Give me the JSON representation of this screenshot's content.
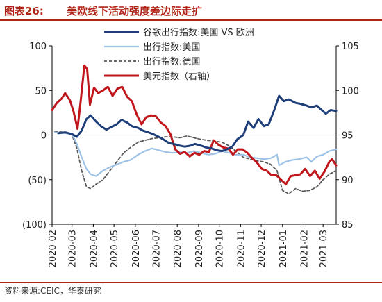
{
  "header": {
    "figure_label": "图表26:",
    "title": "美欧线下活动强度差边际走扩"
  },
  "source": "资料来源:CEIC，华泰研究",
  "colors": {
    "brand_red": "#b02418",
    "google_us": "#1f3f7a",
    "mobility_us": "#9ec3e6",
    "mobility_de": "#595959",
    "dxy": "#c0161c"
  },
  "chart_data": {
    "type": "line",
    "title": "",
    "xlabel": "",
    "ylabel": "",
    "x_range": [
      "2020-02-01",
      "2021-03-20"
    ],
    "x_ticks": [
      "2020-02",
      "2020-03",
      "2020-04",
      "2020-05",
      "2020-06",
      "2020-07",
      "2020-08",
      "2020-09",
      "2020-10",
      "2020-11",
      "2020-12",
      "2021-01",
      "2021-02",
      "2021-03"
    ],
    "left_axis": {
      "range": [
        -100,
        100
      ],
      "ticks": [
        100,
        50,
        0,
        -50,
        -100
      ],
      "tick_labels": [
        "100",
        "50",
        "0",
        "(50)",
        "(100)"
      ]
    },
    "right_axis": {
      "range": [
        85,
        105
      ],
      "ticks": [
        105,
        100,
        95,
        90,
        85
      ],
      "tick_labels": [
        "105",
        "100",
        "95",
        "90",
        "85"
      ]
    },
    "grid": false,
    "legend_position": "top-right",
    "series": [
      {
        "name": "谷歌出行指数:美国 VS 欧洲",
        "axis": "left",
        "style": "solid",
        "color": "#1f3f7a",
        "points": [
          [
            "2020-02-10",
            2
          ],
          [
            "2020-02-20",
            3
          ],
          [
            "2020-03-01",
            1
          ],
          [
            "2020-03-08",
            -2
          ],
          [
            "2020-03-15",
            5
          ],
          [
            "2020-03-22",
            18
          ],
          [
            "2020-03-28",
            22
          ],
          [
            "2020-04-05",
            15
          ],
          [
            "2020-04-12",
            10
          ],
          [
            "2020-04-20",
            6
          ],
          [
            "2020-04-27",
            9
          ],
          [
            "2020-05-05",
            12
          ],
          [
            "2020-05-12",
            17
          ],
          [
            "2020-05-20",
            14
          ],
          [
            "2020-05-27",
            10
          ],
          [
            "2020-06-05",
            8
          ],
          [
            "2020-06-12",
            5
          ],
          [
            "2020-06-20",
            3
          ],
          [
            "2020-06-27",
            1
          ],
          [
            "2020-07-05",
            -2
          ],
          [
            "2020-07-12",
            -5
          ],
          [
            "2020-07-20",
            -9
          ],
          [
            "2020-07-27",
            -10
          ],
          [
            "2020-08-05",
            -12
          ],
          [
            "2020-08-12",
            -13
          ],
          [
            "2020-08-20",
            -12
          ],
          [
            "2020-08-27",
            -10
          ],
          [
            "2020-09-05",
            -12
          ],
          [
            "2020-09-12",
            -14
          ],
          [
            "2020-09-20",
            -15
          ],
          [
            "2020-09-27",
            -17
          ],
          [
            "2020-10-05",
            -18
          ],
          [
            "2020-10-12",
            -16
          ],
          [
            "2020-10-20",
            -13
          ],
          [
            "2020-10-27",
            -5
          ],
          [
            "2020-11-05",
            0
          ],
          [
            "2020-11-12",
            15
          ],
          [
            "2020-11-20",
            8
          ],
          [
            "2020-11-27",
            18
          ],
          [
            "2020-12-05",
            10
          ],
          [
            "2020-12-12",
            12
          ],
          [
            "2020-12-20",
            28
          ],
          [
            "2020-12-27",
            44
          ],
          [
            "2021-01-03",
            38
          ],
          [
            "2021-01-10",
            40
          ],
          [
            "2021-01-20",
            36
          ],
          [
            "2021-01-27",
            35
          ],
          [
            "2021-02-05",
            33
          ],
          [
            "2021-02-12",
            31
          ],
          [
            "2021-02-20",
            33
          ],
          [
            "2021-02-27",
            28
          ],
          [
            "2021-03-05",
            24
          ],
          [
            "2021-03-12",
            28
          ],
          [
            "2021-03-20",
            27
          ]
        ]
      },
      {
        "name": "出行指数:美国",
        "axis": "left",
        "style": "solid",
        "color": "#9ec3e6",
        "points": [
          [
            "2020-02-05",
            3
          ],
          [
            "2020-02-20",
            2
          ],
          [
            "2020-03-01",
            1
          ],
          [
            "2020-03-08",
            -10
          ],
          [
            "2020-03-15",
            -25
          ],
          [
            "2020-03-22",
            -38
          ],
          [
            "2020-03-28",
            -44
          ],
          [
            "2020-04-05",
            -46
          ],
          [
            "2020-04-15",
            -40
          ],
          [
            "2020-04-25",
            -36
          ],
          [
            "2020-05-05",
            -33
          ],
          [
            "2020-05-15",
            -30
          ],
          [
            "2020-05-25",
            -28
          ],
          [
            "2020-06-05",
            -22
          ],
          [
            "2020-06-15",
            -18
          ],
          [
            "2020-06-25",
            -15
          ],
          [
            "2020-07-05",
            -17
          ],
          [
            "2020-07-15",
            -19
          ],
          [
            "2020-07-25",
            -20
          ],
          [
            "2020-08-05",
            -19
          ],
          [
            "2020-08-15",
            -20
          ],
          [
            "2020-08-25",
            -18
          ],
          [
            "2020-09-05",
            -20
          ],
          [
            "2020-09-15",
            -22
          ],
          [
            "2020-09-25",
            -21
          ],
          [
            "2020-10-05",
            -18
          ],
          [
            "2020-10-15",
            -20
          ],
          [
            "2020-10-25",
            -22
          ],
          [
            "2020-11-05",
            -22
          ],
          [
            "2020-11-15",
            -25
          ],
          [
            "2020-11-25",
            -26
          ],
          [
            "2020-12-05",
            -27
          ],
          [
            "2020-12-15",
            -26
          ],
          [
            "2020-12-24",
            -22
          ],
          [
            "2020-12-27",
            -34
          ],
          [
            "2021-01-05",
            -30
          ],
          [
            "2021-01-15",
            -28
          ],
          [
            "2021-01-25",
            -27
          ],
          [
            "2021-02-05",
            -25
          ],
          [
            "2021-02-12",
            -30
          ],
          [
            "2021-02-20",
            -24
          ],
          [
            "2021-03-01",
            -22
          ],
          [
            "2021-03-10",
            -18
          ],
          [
            "2021-03-20",
            -16
          ]
        ]
      },
      {
        "name": "出行指数:德国",
        "axis": "left",
        "style": "dashed",
        "color": "#595959",
        "points": [
          [
            "2020-02-05",
            4
          ],
          [
            "2020-02-20",
            3
          ],
          [
            "2020-03-01",
            0
          ],
          [
            "2020-03-08",
            -15
          ],
          [
            "2020-03-15",
            -40
          ],
          [
            "2020-03-22",
            -58
          ],
          [
            "2020-03-28",
            -60
          ],
          [
            "2020-04-05",
            -55
          ],
          [
            "2020-04-15",
            -50
          ],
          [
            "2020-04-25",
            -40
          ],
          [
            "2020-05-05",
            -30
          ],
          [
            "2020-05-15",
            -20
          ],
          [
            "2020-05-25",
            -14
          ],
          [
            "2020-06-05",
            -8
          ],
          [
            "2020-06-15",
            -6
          ],
          [
            "2020-06-25",
            -4
          ],
          [
            "2020-07-05",
            -3
          ],
          [
            "2020-07-15",
            -2
          ],
          [
            "2020-07-25",
            -2
          ],
          [
            "2020-08-05",
            -3
          ],
          [
            "2020-08-15",
            -1
          ],
          [
            "2020-08-25",
            -3
          ],
          [
            "2020-09-05",
            -5
          ],
          [
            "2020-09-15",
            -6
          ],
          [
            "2020-09-25",
            -7
          ],
          [
            "2020-10-05",
            -8
          ],
          [
            "2020-10-15",
            -12
          ],
          [
            "2020-10-25",
            -18
          ],
          [
            "2020-11-05",
            -25
          ],
          [
            "2020-11-15",
            -27
          ],
          [
            "2020-11-25",
            -29
          ],
          [
            "2020-12-05",
            -30
          ],
          [
            "2020-12-15",
            -33
          ],
          [
            "2020-12-24",
            -40
          ],
          [
            "2021-01-01",
            -62
          ],
          [
            "2021-01-10",
            -66
          ],
          [
            "2021-01-20",
            -60
          ],
          [
            "2021-01-30",
            -63
          ],
          [
            "2021-02-10",
            -62
          ],
          [
            "2021-02-20",
            -58
          ],
          [
            "2021-03-01",
            -50
          ],
          [
            "2021-03-10",
            -44
          ],
          [
            "2021-03-20",
            -40
          ]
        ]
      },
      {
        "name": "美元指数（右轴）",
        "axis": "right",
        "style": "solid",
        "color": "#c0161c",
        "points": [
          [
            "2020-02-01",
            97.8
          ],
          [
            "2020-02-08",
            98.6
          ],
          [
            "2020-02-15",
            99.1
          ],
          [
            "2020-02-20",
            99.7
          ],
          [
            "2020-02-27",
            98.9
          ],
          [
            "2020-03-03",
            97.7
          ],
          [
            "2020-03-09",
            95.7
          ],
          [
            "2020-03-13",
            98.4
          ],
          [
            "2020-03-19",
            102.8
          ],
          [
            "2020-03-23",
            102.4
          ],
          [
            "2020-03-27",
            98.4
          ],
          [
            "2020-04-02",
            100.3
          ],
          [
            "2020-04-08",
            99.7
          ],
          [
            "2020-04-15",
            100.0
          ],
          [
            "2020-04-22",
            100.4
          ],
          [
            "2020-04-29",
            99.4
          ],
          [
            "2020-05-06",
            100.2
          ],
          [
            "2020-05-13",
            100.4
          ],
          [
            "2020-05-20",
            99.3
          ],
          [
            "2020-05-27",
            98.8
          ],
          [
            "2020-06-03",
            97.3
          ],
          [
            "2020-06-10",
            96.2
          ],
          [
            "2020-06-17",
            97.0
          ],
          [
            "2020-06-24",
            97.2
          ],
          [
            "2020-07-01",
            97.1
          ],
          [
            "2020-07-08",
            96.4
          ],
          [
            "2020-07-15",
            96.0
          ],
          [
            "2020-07-22",
            95.1
          ],
          [
            "2020-07-29",
            93.4
          ],
          [
            "2020-08-05",
            92.9
          ],
          [
            "2020-08-12",
            93.1
          ],
          [
            "2020-08-19",
            92.6
          ],
          [
            "2020-08-26",
            93.0
          ],
          [
            "2020-09-02",
            92.8
          ],
          [
            "2020-09-09",
            93.2
          ],
          [
            "2020-09-16",
            93.1
          ],
          [
            "2020-09-23",
            94.4
          ],
          [
            "2020-09-30",
            93.9
          ],
          [
            "2020-10-07",
            93.6
          ],
          [
            "2020-10-14",
            93.5
          ],
          [
            "2020-10-21",
            92.8
          ],
          [
            "2020-10-28",
            93.4
          ],
          [
            "2020-11-04",
            93.4
          ],
          [
            "2020-11-11",
            93.0
          ],
          [
            "2020-11-18",
            92.4
          ],
          [
            "2020-11-25",
            91.9
          ],
          [
            "2020-12-02",
            91.2
          ],
          [
            "2020-12-09",
            91.0
          ],
          [
            "2020-12-16",
            90.5
          ],
          [
            "2020-12-23",
            90.5
          ],
          [
            "2020-12-31",
            89.9
          ],
          [
            "2021-01-06",
            89.5
          ],
          [
            "2021-01-13",
            90.4
          ],
          [
            "2021-01-20",
            90.5
          ],
          [
            "2021-01-27",
            90.6
          ],
          [
            "2021-02-03",
            91.2
          ],
          [
            "2021-02-10",
            90.4
          ],
          [
            "2021-02-17",
            91.0
          ],
          [
            "2021-02-24",
            90.1
          ],
          [
            "2021-03-03",
            90.9
          ],
          [
            "2021-03-10",
            92.0
          ],
          [
            "2021-03-14",
            92.3
          ],
          [
            "2021-03-20",
            91.6
          ]
        ]
      }
    ]
  }
}
